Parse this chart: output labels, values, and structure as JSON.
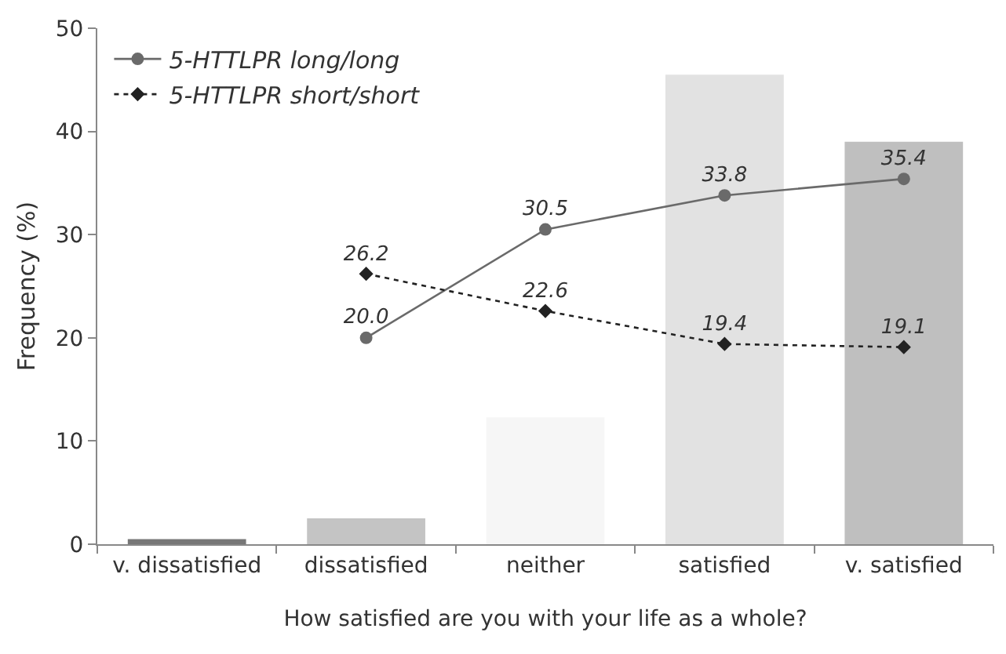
{
  "chart_data": {
    "type": "bar",
    "xlabel": "How satisfied are you with your life as a whole?",
    "ylabel": "Frequency (%)",
    "categories": [
      "v. dissatisfied",
      "dissatisfied",
      "neither",
      "satisfied",
      "v. satisfied"
    ],
    "ylim": [
      0,
      50
    ],
    "yticks": [
      0,
      10,
      20,
      30,
      40,
      50
    ],
    "grid": false,
    "legend": "top left",
    "series": [
      {
        "colors": [
          "#777777",
          "#c4c4c4",
          "#f6f6f6",
          "#e2e2e2",
          "#bfbfbf"
        ],
        "values": [
          0.5,
          2.5,
          12.3,
          45.5,
          39.0
        ]
      },
      {
        "type": "line",
        "name": "5-HTTLPR long/long",
        "color": "#6a6a6a",
        "marker": "circle",
        "line_style": "solid",
        "values": [
          null,
          20.0,
          30.5,
          33.8,
          35.4
        ],
        "value_labels": [
          null,
          "20.0",
          "30.5",
          "33.8",
          "35.4"
        ]
      },
      {
        "type": "line",
        "name": "5-HTTLPR short/short",
        "color": "#222222",
        "marker": "diamond",
        "line_style": "dotted",
        "values": [
          null,
          26.2,
          22.6,
          19.4,
          19.1
        ],
        "value_labels": [
          null,
          "26.2",
          "22.6",
          "19.4",
          "19.1"
        ]
      }
    ]
  }
}
